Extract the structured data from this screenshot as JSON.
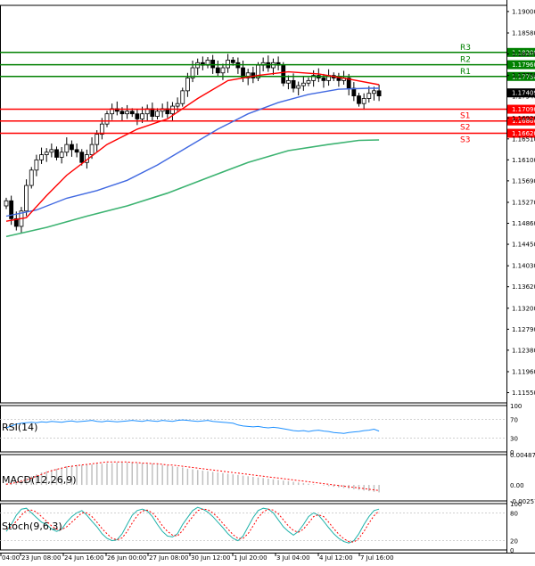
{
  "chart_data": {
    "type": "candlestick",
    "instrument_note": "",
    "price_axis": {
      "range": [
        1.1135,
        1.1912
      ],
      "tick_labels": [
        "1.19000",
        "1.18580",
        "1.18170",
        "1.17750",
        "1.17340",
        "1.16920",
        "1.16510",
        "1.16100",
        "1.15690",
        "1.15270",
        "1.14860",
        "1.14450",
        "1.14030",
        "1.13620",
        "1.13200",
        "1.12790",
        "1.12380",
        "1.11960",
        "1.11550"
      ],
      "current_price": "1.17409"
    },
    "levels": [
      {
        "name": "R3",
        "value": 1.182,
        "label": "1.18200",
        "color": "#008000"
      },
      {
        "name": "R2",
        "value": 1.1796,
        "label": "1.17960",
        "color": "#008000"
      },
      {
        "name": "R1",
        "value": 1.1773,
        "label": "1.17730",
        "color": "#008000"
      },
      {
        "name": "S1",
        "value": 1.1709,
        "label": "1.17090",
        "color": "#ff0000"
      },
      {
        "name": "S2",
        "value": 1.1686,
        "label": "1.16860",
        "color": "#ff0000"
      },
      {
        "name": "S3",
        "value": 1.1662,
        "label": "1.16620",
        "color": "#ff0000"
      }
    ],
    "x_labels": [
      "04:00",
      "23 Jun 08:00",
      "24 Jun 16:00",
      "26 Jun 00:00",
      "27 Jun 08:00",
      "30 Jun 12:00",
      "1 Jul 20:00",
      "3 Jul 04:00",
      "4 Jul 12:00",
      "7 Jul 16:00"
    ],
    "candle_close": [
      1.153,
      1.1495,
      1.148,
      1.151,
      1.156,
      1.159,
      1.161,
      1.162,
      1.1625,
      1.163,
      1.1615,
      1.1625,
      1.164,
      1.163,
      1.1625,
      1.1605,
      1.162,
      1.164,
      1.166,
      1.168,
      1.17,
      1.171,
      1.1705,
      1.17,
      1.1705,
      1.17,
      1.169,
      1.17,
      1.171,
      1.1695,
      1.1705,
      1.171,
      1.17,
      1.1715,
      1.172,
      1.1745,
      1.177,
      1.179,
      1.18,
      1.1795,
      1.1805,
      1.179,
      1.178,
      1.179,
      1.1805,
      1.18,
      1.179,
      1.177,
      1.178,
      1.177,
      1.1795,
      1.18,
      1.179,
      1.18,
      1.1795,
      1.176,
      1.1765,
      1.175,
      1.1755,
      1.176,
      1.1765,
      1.1775,
      1.177,
      1.1765,
      1.1775,
      1.177,
      1.1765,
      1.177,
      1.175,
      1.1735,
      1.172,
      1.173,
      1.174,
      1.1745,
      1.1735
    ],
    "sma_fast_red": [
      [
        0,
        1.149
      ],
      [
        4,
        1.1497
      ],
      [
        8,
        1.154
      ],
      [
        12,
        1.158
      ],
      [
        16,
        1.161
      ],
      [
        20,
        1.164
      ],
      [
        26,
        1.167
      ],
      [
        32,
        1.169
      ],
      [
        38,
        1.173
      ],
      [
        44,
        1.1765
      ],
      [
        50,
        1.1775
      ],
      [
        56,
        1.1782
      ],
      [
        62,
        1.1778
      ],
      [
        68,
        1.1768
      ],
      [
        74,
        1.1757
      ]
    ],
    "sma_mid_blue": [
      [
        0,
        1.15
      ],
      [
        6,
        1.1512
      ],
      [
        12,
        1.1535
      ],
      [
        18,
        1.155
      ],
      [
        24,
        1.157
      ],
      [
        30,
        1.16
      ],
      [
        36,
        1.1635
      ],
      [
        42,
        1.167
      ],
      [
        48,
        1.17
      ],
      [
        54,
        1.1722
      ],
      [
        60,
        1.1738
      ],
      [
        66,
        1.1748
      ],
      [
        72,
        1.175
      ],
      [
        74,
        1.175
      ]
    ],
    "sma_slow_green": [
      [
        0,
        1.146
      ],
      [
        8,
        1.1478
      ],
      [
        16,
        1.15
      ],
      [
        24,
        1.152
      ],
      [
        32,
        1.1545
      ],
      [
        40,
        1.1575
      ],
      [
        48,
        1.1605
      ],
      [
        56,
        1.1628
      ],
      [
        64,
        1.164
      ],
      [
        70,
        1.1648
      ],
      [
        74,
        1.1649
      ]
    ],
    "rsi": {
      "title": "RSI(14)",
      "range": [
        0,
        100
      ],
      "tick_labels": [
        "100",
        "70",
        "30",
        "0"
      ],
      "values": [
        52,
        56,
        60,
        62,
        63,
        64,
        63,
        65,
        64,
        66,
        65,
        64,
        66,
        67,
        65,
        66,
        67,
        68,
        66,
        65,
        67,
        66,
        65,
        66,
        67,
        68,
        67,
        66,
        68,
        67,
        66,
        68,
        67,
        66,
        68,
        69,
        68,
        67,
        66,
        67,
        68,
        66,
        65,
        64,
        63,
        62,
        58,
        56,
        55,
        54,
        55,
        53,
        52,
        53,
        52,
        50,
        48,
        46,
        45,
        46,
        44,
        46,
        47,
        45,
        44,
        42,
        41,
        40,
        42,
        43,
        44,
        46,
        47,
        49,
        45
      ]
    },
    "macd": {
      "title": "MACD(12,26,9)",
      "range": [
        -0.00257,
        0.00487
      ],
      "tick_labels": [
        "0.00487",
        "0.00",
        "-0.002573"
      ],
      "hist": [
        0.0002,
        0.0003,
        0.0005,
        0.0008,
        0.0011,
        0.0014,
        0.0017,
        0.002,
        0.0022,
        0.0024,
        0.0026,
        0.0028,
        0.003,
        0.0031,
        0.0032,
        0.0032,
        0.0033,
        0.0033,
        0.0034,
        0.0034,
        0.0035,
        0.0035,
        0.0036,
        0.0036,
        0.0036,
        0.0036,
        0.0035,
        0.0035,
        0.0034,
        0.0034,
        0.0033,
        0.0032,
        0.0031,
        0.003,
        0.0029,
        0.0028,
        0.0026,
        0.0025,
        0.0024,
        0.0023,
        0.0022,
        0.0021,
        0.002,
        0.0019,
        0.0018,
        0.0017,
        0.0016,
        0.0015,
        0.0014,
        0.0013,
        0.0012,
        0.0011,
        0.001,
        0.0009,
        0.0008,
        0.0007,
        0.0006,
        0.0005,
        0.0004,
        0.0003,
        0.0002,
        0.0001,
        0.0,
        -0.0001,
        -0.0002,
        -0.0003,
        -0.0004,
        -0.0005,
        -0.0006,
        -0.0007,
        -0.0008,
        -0.0009,
        -0.001,
        -0.0011,
        -0.0012
      ],
      "signal": [
        0.0001,
        0.0002,
        0.0004,
        0.0006,
        0.0008,
        0.0011,
        0.0014,
        0.0017,
        0.002,
        0.0023,
        0.0025,
        0.0027,
        0.0029,
        0.003,
        0.0031,
        0.0032,
        0.0033,
        0.0034,
        0.0035,
        0.0036,
        0.0037,
        0.0037,
        0.0037,
        0.0037,
        0.0037,
        0.0036,
        0.0036,
        0.0035,
        0.0035,
        0.0034,
        0.0034,
        0.0033,
        0.0032,
        0.0032,
        0.0031,
        0.003,
        0.0029,
        0.0028,
        0.0027,
        0.0026,
        0.0025,
        0.0024,
        0.0023,
        0.0022,
        0.0021,
        0.002,
        0.0019,
        0.0018,
        0.0017,
        0.0016,
        0.0015,
        0.0014,
        0.0013,
        0.0012,
        0.0011,
        0.001,
        0.0009,
        0.0008,
        0.0007,
        0.0006,
        0.0005,
        0.0004,
        0.0003,
        0.0002,
        0.0001,
        0.0,
        -0.0001,
        -0.0002,
        -0.0003,
        -0.0004,
        -0.0005,
        -0.0006,
        -0.0007,
        -0.0008,
        -0.0009
      ]
    },
    "stoch": {
      "title": "Stoch(9,6,3)",
      "range": [
        0,
        100
      ],
      "tick_labels": [
        "100",
        "80",
        "20",
        "0"
      ],
      "main": [
        40,
        55,
        75,
        88,
        90,
        80,
        70,
        60,
        55,
        45,
        40,
        45,
        60,
        72,
        80,
        85,
        75,
        62,
        50,
        35,
        25,
        20,
        22,
        35,
        55,
        75,
        85,
        88,
        84,
        72,
        55,
        40,
        30,
        28,
        35,
        55,
        70,
        85,
        92,
        88,
        82,
        72,
        60,
        48,
        35,
        25,
        20,
        30,
        50,
        70,
        85,
        90,
        88,
        80,
        65,
        50,
        40,
        32,
        40,
        55,
        72,
        80,
        75,
        62,
        48,
        35,
        25,
        18,
        15,
        20,
        35,
        55,
        72,
        85,
        88
      ],
      "signal": [
        45,
        50,
        62,
        75,
        85,
        86,
        82,
        72,
        62,
        52,
        45,
        44,
        50,
        60,
        70,
        80,
        80,
        72,
        60,
        46,
        35,
        25,
        22,
        26,
        40,
        58,
        74,
        84,
        86,
        80,
        68,
        52,
        40,
        32,
        30,
        42,
        58,
        72,
        85,
        88,
        87,
        80,
        70,
        57,
        45,
        33,
        25,
        25,
        35,
        52,
        70,
        82,
        88,
        86,
        78,
        65,
        52,
        42,
        38,
        45,
        58,
        72,
        76,
        72,
        60,
        46,
        34,
        24,
        18,
        17,
        25,
        40,
        58,
        74,
        84
      ]
    }
  }
}
